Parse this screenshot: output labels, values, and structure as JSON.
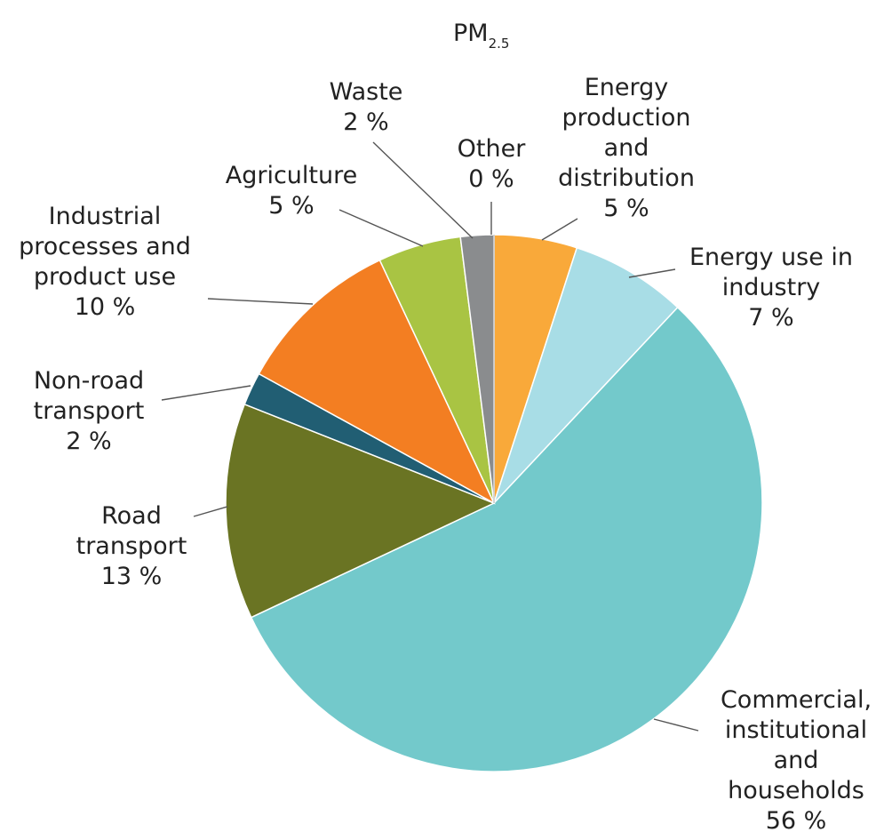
{
  "chart_data": {
    "type": "pie",
    "title": "PM",
    "title_subscript": "2.5",
    "slices": [
      {
        "name_lines": [
          "Energy",
          "production",
          "and",
          "distribution"
        ],
        "value": 5,
        "value_label": "5 %",
        "color": "#F9A93A"
      },
      {
        "name_lines": [
          "Energy use in",
          "industry"
        ],
        "value": 7,
        "value_label": "7 %",
        "color": "#A8DDE6"
      },
      {
        "name_lines": [
          "Commercial,",
          "institutional",
          "and",
          "households"
        ],
        "value": 56,
        "value_label": "56 %",
        "color": "#73C9CB"
      },
      {
        "name_lines": [
          "Road",
          "transport"
        ],
        "value": 13,
        "value_label": "13 %",
        "color": "#6A7423"
      },
      {
        "name_lines": [
          "Non-road",
          "transport"
        ],
        "value": 2,
        "value_label": "2 %",
        "color": "#215E73"
      },
      {
        "name_lines": [
          "Industrial",
          "processes and",
          "product use"
        ],
        "value": 10,
        "value_label": "10 %",
        "color": "#F37E22"
      },
      {
        "name_lines": [
          "Agriculture"
        ],
        "value": 5,
        "value_label": "5 %",
        "color": "#A9C443"
      },
      {
        "name_lines": [
          "Waste"
        ],
        "value": 2,
        "value_label": "2 %",
        "color": "#8A8C8E"
      },
      {
        "name_lines": [
          "Other"
        ],
        "value": 0,
        "value_label": "0 %",
        "color": "#C8C8C8"
      }
    ]
  }
}
